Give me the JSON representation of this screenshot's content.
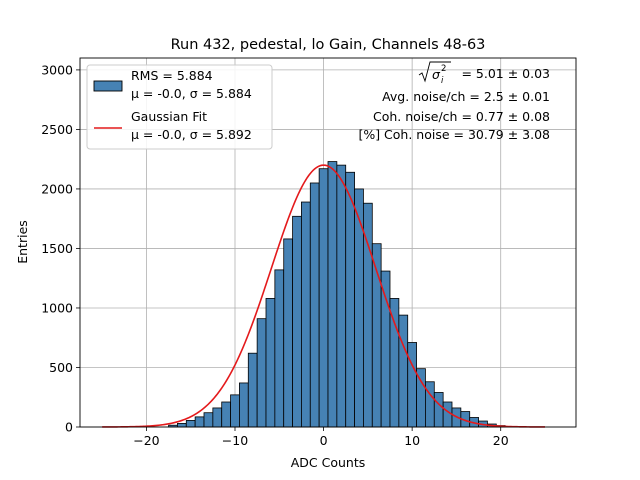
{
  "chart_data": {
    "type": "histogram",
    "title": "Run 432, pedestal, lo Gain, Channels 48-63",
    "xlabel": "ADC Counts",
    "ylabel": "Entries",
    "xlim": [
      -27.5,
      28.5
    ],
    "ylim": [
      0,
      3100
    ],
    "xticks": [
      -20,
      -10,
      0,
      10,
      20
    ],
    "yticks": [
      0,
      500,
      1000,
      1500,
      2000,
      2500,
      3000
    ],
    "grid": true,
    "legend_position": "top-left",
    "bin_width": 1,
    "bins": [
      {
        "x": -17,
        "y": 15
      },
      {
        "x": -16,
        "y": 30
      },
      {
        "x": -15,
        "y": 55
      },
      {
        "x": -14,
        "y": 85
      },
      {
        "x": -13,
        "y": 120
      },
      {
        "x": -12,
        "y": 160
      },
      {
        "x": -11,
        "y": 210
      },
      {
        "x": -10,
        "y": 270
      },
      {
        "x": -9,
        "y": 370
      },
      {
        "x": -8,
        "y": 620
      },
      {
        "x": -7,
        "y": 910
      },
      {
        "x": -6,
        "y": 1080
      },
      {
        "x": -5,
        "y": 1320
      },
      {
        "x": -4,
        "y": 1580
      },
      {
        "x": -3,
        "y": 1770
      },
      {
        "x": -2,
        "y": 1890
      },
      {
        "x": -1,
        "y": 2050
      },
      {
        "x": 0,
        "y": 2170
      },
      {
        "x": 1,
        "y": 2230
      },
      {
        "x": 2,
        "y": 2200
      },
      {
        "x": 3,
        "y": 2140
      },
      {
        "x": 4,
        "y": 2000
      },
      {
        "x": 5,
        "y": 1880
      },
      {
        "x": 6,
        "y": 1540
      },
      {
        "x": 7,
        "y": 1310
      },
      {
        "x": 8,
        "y": 1080
      },
      {
        "x": 9,
        "y": 940
      },
      {
        "x": 10,
        "y": 710
      },
      {
        "x": 11,
        "y": 490
      },
      {
        "x": 12,
        "y": 380
      },
      {
        "x": 13,
        "y": 290
      },
      {
        "x": 14,
        "y": 210
      },
      {
        "x": 15,
        "y": 160
      },
      {
        "x": 16,
        "y": 130
      },
      {
        "x": 17,
        "y": 80
      },
      {
        "x": 18,
        "y": 50
      },
      {
        "x": 19,
        "y": 25
      },
      {
        "x": 20,
        "y": 12
      }
    ],
    "series": [
      {
        "name": "RMS = 5.884",
        "name_line2": "μ = -0.0, σ = 5.884",
        "type": "histogram",
        "color": "#4682b4"
      },
      {
        "name": "Gaussian Fit",
        "name_line2": "μ = -0.0, σ = 5.892",
        "type": "line",
        "color": "#e41a1c",
        "mu": 0.0,
        "sigma": 5.892,
        "amplitude": 2200,
        "x_range": [
          -25,
          25
        ]
      }
    ],
    "annotations": {
      "sigma_i_value": "= 5.01 ± 0.03",
      "avg_noise": "Avg. noise/ch = 2.5 ± 0.01",
      "coh_noise": "Coh. noise/ch = 0.77 ± 0.08",
      "coh_pct": "[%] Coh. noise = 30.79 ± 3.08"
    }
  }
}
